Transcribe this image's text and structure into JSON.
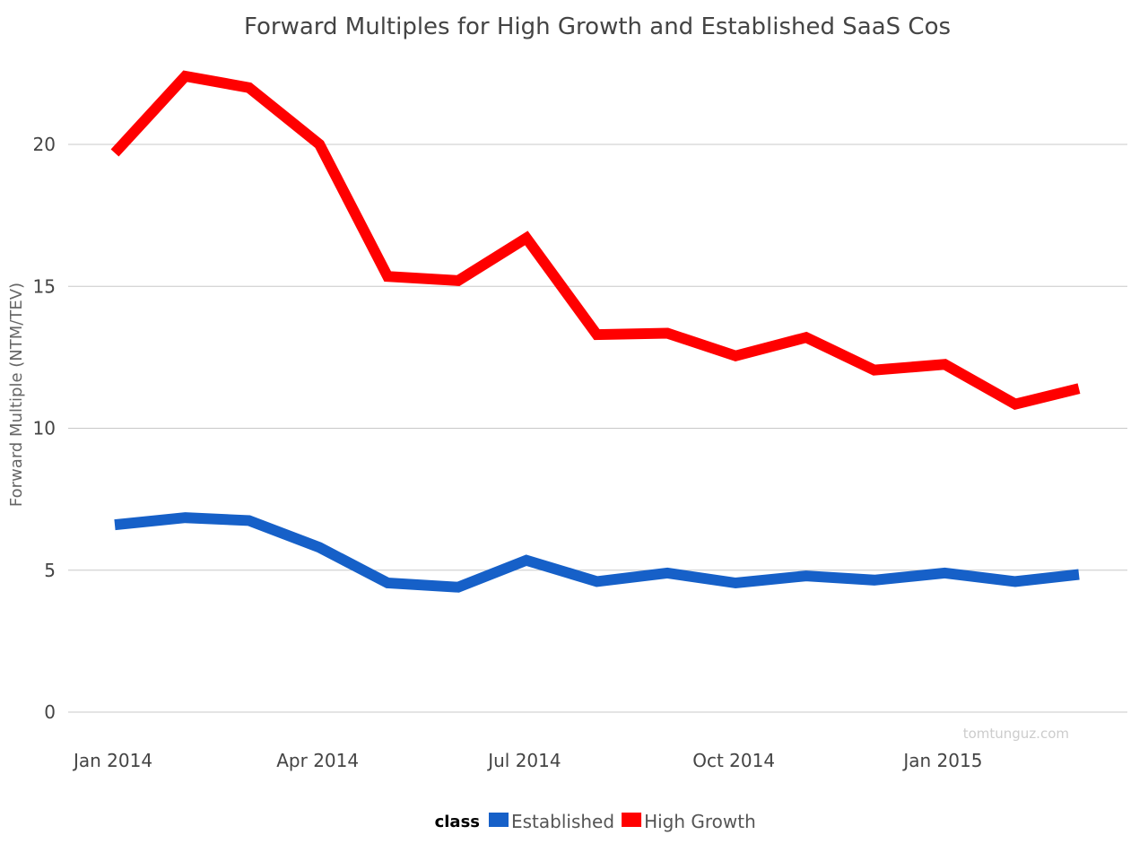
{
  "chart_data": {
    "type": "line",
    "title": "Forward Multiples for High Growth and Established SaaS Cos",
    "ylabel": "Forward Multiple (NTM/TEV)",
    "xlabel": "",
    "ylim": [
      0,
      23
    ],
    "yticks": [
      0,
      5,
      10,
      15,
      20
    ],
    "x": [
      "2014-01-01",
      "2014-02-01",
      "2014-03-01",
      "2014-04-01",
      "2014-05-01",
      "2014-06-01",
      "2014-07-01",
      "2014-08-01",
      "2014-09-01",
      "2014-10-01",
      "2014-11-01",
      "2014-12-01",
      "2015-01-01",
      "2015-02-01",
      "2015-03-01"
    ],
    "xticks": [
      {
        "date": "2014-01-01",
        "label": "Jan 2014"
      },
      {
        "date": "2014-04-01",
        "label": "Apr 2014"
      },
      {
        "date": "2014-07-01",
        "label": "Jul 2014"
      },
      {
        "date": "2014-10-01",
        "label": "Oct 2014"
      },
      {
        "date": "2015-01-01",
        "label": "Jan 2015"
      }
    ],
    "series": [
      {
        "name": "Established",
        "color": "#1660c8",
        "values": [
          6.6,
          6.85,
          6.75,
          5.8,
          4.55,
          4.4,
          5.35,
          4.6,
          4.9,
          4.55,
          4.8,
          4.65,
          4.9,
          4.6,
          4.85
        ]
      },
      {
        "name": "High Growth",
        "color": "#ff0000",
        "values": [
          19.7,
          22.4,
          22.0,
          20.0,
          15.35,
          15.2,
          16.7,
          13.3,
          13.35,
          12.55,
          13.2,
          12.05,
          12.25,
          10.85,
          11.4
        ]
      }
    ],
    "legend": {
      "title": "class",
      "placement": "bottom-center"
    },
    "grid": true,
    "watermark": "tomtunguz.com"
  }
}
